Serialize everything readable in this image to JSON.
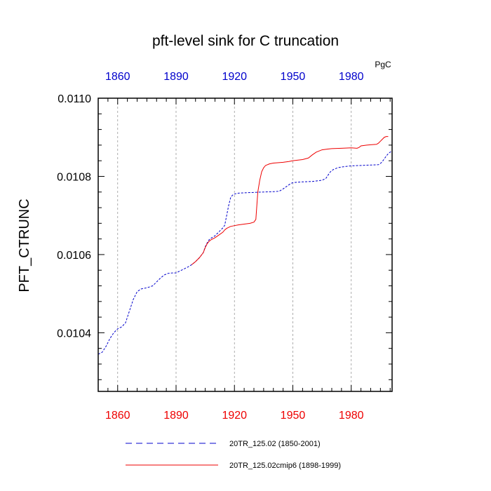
{
  "chart_data": {
    "type": "line",
    "title": "pft-level sink for C truncation",
    "ylabel": "PFT_CTRUNC",
    "units": "PgC",
    "xlim": [
      1850,
      2001
    ],
    "ylim": [
      0.01025,
      0.011
    ],
    "x_ticks": [
      1860,
      1890,
      1920,
      1950,
      1980
    ],
    "x_tick_labels": [
      "1860",
      "1890",
      "1920",
      "1950",
      "1980"
    ],
    "y_ticks": [
      0.0104,
      0.0106,
      0.0108,
      0.011
    ],
    "y_tick_labels": [
      "0.0104",
      "0.0106",
      "0.0108",
      "0.0110"
    ],
    "colors": {
      "top_axis": "#0000cc",
      "bottom_axis": "#ee0000",
      "frame": "#000000",
      "grid": "#999999"
    },
    "grid": "vertical-dashed",
    "legend_position": "bottom",
    "series": [
      {
        "name": "20TR_125.02 (1850-2001)",
        "color": "#0000cc",
        "dash": "dashed",
        "x": [
          1850,
          1852,
          1854,
          1856,
          1858,
          1860,
          1862,
          1864,
          1866,
          1868,
          1870,
          1872,
          1875,
          1878,
          1880,
          1882,
          1884,
          1886,
          1888,
          1890,
          1892,
          1894,
          1896,
          1898,
          1900,
          1902,
          1904,
          1905,
          1906,
          1907,
          1908,
          1910,
          1912,
          1914,
          1915,
          1916,
          1917,
          1918,
          1919,
          1920,
          1922,
          1925,
          1930,
          1935,
          1940,
          1943,
          1945,
          1947,
          1949,
          1950,
          1952,
          1955,
          1960,
          1965,
          1967,
          1969,
          1970,
          1971,
          1973,
          1975,
          1980,
          1985,
          1990,
          1994,
          1995,
          1996,
          1997,
          1998,
          1999,
          2000,
          2001
        ],
        "y": [
          0.010345,
          0.01035,
          0.010365,
          0.010385,
          0.0104,
          0.01041,
          0.010415,
          0.010425,
          0.010455,
          0.010485,
          0.010505,
          0.010512,
          0.010515,
          0.01052,
          0.01053,
          0.01054,
          0.010548,
          0.010552,
          0.010553,
          0.010553,
          0.010558,
          0.010563,
          0.010568,
          0.010574,
          0.010582,
          0.010592,
          0.010605,
          0.01062,
          0.01063,
          0.010638,
          0.010642,
          0.010648,
          0.010658,
          0.010668,
          0.010675,
          0.0107,
          0.010725,
          0.010745,
          0.010752,
          0.010755,
          0.010757,
          0.010758,
          0.010759,
          0.01076,
          0.010761,
          0.010762,
          0.010768,
          0.010775,
          0.010782,
          0.010784,
          0.010785,
          0.010786,
          0.010787,
          0.01079,
          0.010795,
          0.01081,
          0.010815,
          0.010818,
          0.010822,
          0.010824,
          0.010827,
          0.010828,
          0.010829,
          0.01083,
          0.010833,
          0.010838,
          0.010845,
          0.010852,
          0.010858,
          0.010862,
          0.010865
        ]
      },
      {
        "name": "20TR_125.02cmip6 (1898-1999)",
        "color": "#ee0000",
        "dash": "solid",
        "x": [
          1898,
          1900,
          1902,
          1904,
          1905,
          1906,
          1907,
          1908,
          1910,
          1912,
          1914,
          1915,
          1916,
          1918,
          1920,
          1922,
          1925,
          1928,
          1930,
          1931,
          1932,
          1933,
          1934,
          1935,
          1936,
          1938,
          1940,
          1945,
          1948,
          1950,
          1955,
          1958,
          1960,
          1962,
          1965,
          1968,
          1970,
          1975,
          1980,
          1983,
          1984,
          1985,
          1988,
          1990,
          1993,
          1994,
          1995,
          1996,
          1997,
          1998,
          1999
        ],
        "y": [
          0.010574,
          0.010582,
          0.010592,
          0.010605,
          0.010618,
          0.010628,
          0.010634,
          0.010638,
          0.010643,
          0.01065,
          0.010657,
          0.010663,
          0.010667,
          0.010672,
          0.010674,
          0.010676,
          0.010678,
          0.01068,
          0.010683,
          0.01069,
          0.01076,
          0.01079,
          0.010812,
          0.010822,
          0.010828,
          0.010832,
          0.010834,
          0.010836,
          0.010838,
          0.01084,
          0.010843,
          0.010847,
          0.010855,
          0.010862,
          0.010868,
          0.01087,
          0.010871,
          0.010872,
          0.010873,
          0.010872,
          0.010874,
          0.010878,
          0.01088,
          0.010881,
          0.010882,
          0.010885,
          0.01089,
          0.010895,
          0.0109,
          0.010902,
          0.010902
        ]
      }
    ]
  }
}
